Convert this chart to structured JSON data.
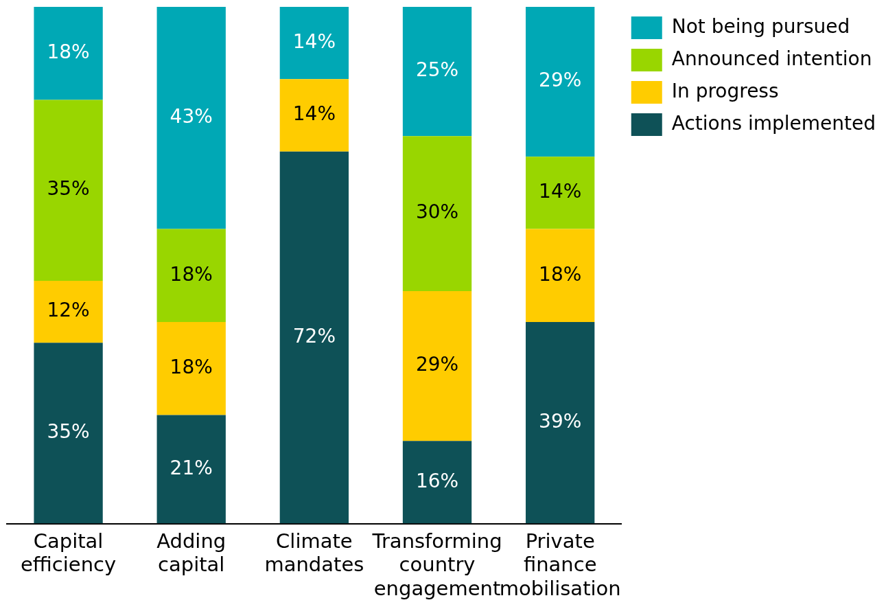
{
  "chart_data": {
    "type": "bar",
    "stacked": true,
    "legend": "top right",
    "grid": false,
    "categories": [
      "Capital efficiency",
      "Adding capital",
      "Climate mandates",
      "Transforming country engagement",
      "Private finance mobilisation"
    ],
    "series": [
      {
        "name": "Actions implemented",
        "color": "#0e5157",
        "values": [
          35,
          21,
          72,
          16,
          39
        ],
        "value_labels": [
          "35%",
          "21%",
          "72%",
          "16%",
          "39%"
        ]
      },
      {
        "name": "In progress",
        "color": "#ffcc00",
        "values": [
          12,
          18,
          14,
          29,
          18
        ],
        "value_labels": [
          "12%",
          "18%",
          "14%",
          "29%",
          "18%"
        ]
      },
      {
        "name": "Announced intention",
        "color": "#99d600",
        "values": [
          35,
          18,
          null,
          30,
          14
        ],
        "value_labels": [
          "35%",
          "18%",
          null,
          "30%",
          "14%"
        ]
      },
      {
        "name": "Not being pursued",
        "color": "#00a8b5",
        "values": [
          18,
          43,
          14,
          25,
          29
        ],
        "value_labels": [
          "18%",
          "43%",
          "14%",
          "25%",
          "29%"
        ]
      }
    ]
  }
}
